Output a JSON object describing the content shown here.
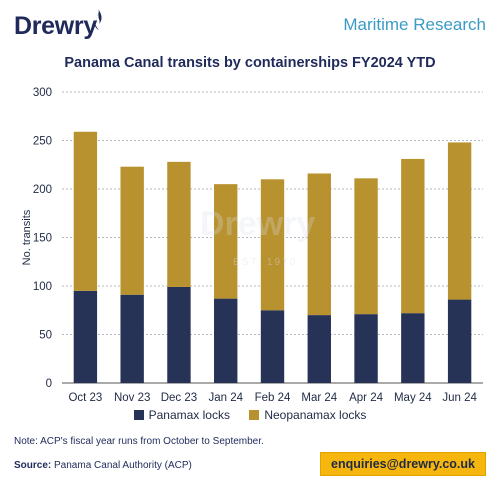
{
  "header": {
    "logo_text": "Drewry",
    "tagline": "Maritime Research"
  },
  "watermark": {
    "text": "Drewry",
    "subtext": "EST. 1970"
  },
  "chart_data": {
    "type": "bar",
    "stacked": true,
    "title": "Panama Canal transits by containerships FY2024 YTD",
    "xlabel": "",
    "ylabel": "No. transits",
    "ylim": [
      0,
      300
    ],
    "yticks": [
      0,
      50,
      100,
      150,
      200,
      250,
      300
    ],
    "grid": true,
    "legend_position": "bottom",
    "categories": [
      "Oct 23",
      "Nov 23",
      "Dec 23",
      "Jan 24",
      "Feb 24",
      "Mar 24",
      "Apr 24",
      "May 24",
      "Jun 24"
    ],
    "series": [
      {
        "name": "Panamax locks",
        "color": "#263357",
        "values": [
          95,
          91,
          99,
          87,
          75,
          70,
          71,
          72,
          86
        ]
      },
      {
        "name": "Neopanamax locks",
        "color": "#b8922f",
        "values": [
          164,
          132,
          129,
          118,
          135,
          146,
          140,
          159,
          162
        ]
      }
    ]
  },
  "footer": {
    "note": "Note: ACP's fiscal year runs from October to September.",
    "source_label": "Source:",
    "source_text": "Panama Canal Authority (ACP)",
    "contact": "enquiries@drewry.co.uk"
  },
  "colors": {
    "brand_navy": "#1f2a5a",
    "accent_blue": "#3a9bc7",
    "badge_yellow": "#f6b60e"
  }
}
